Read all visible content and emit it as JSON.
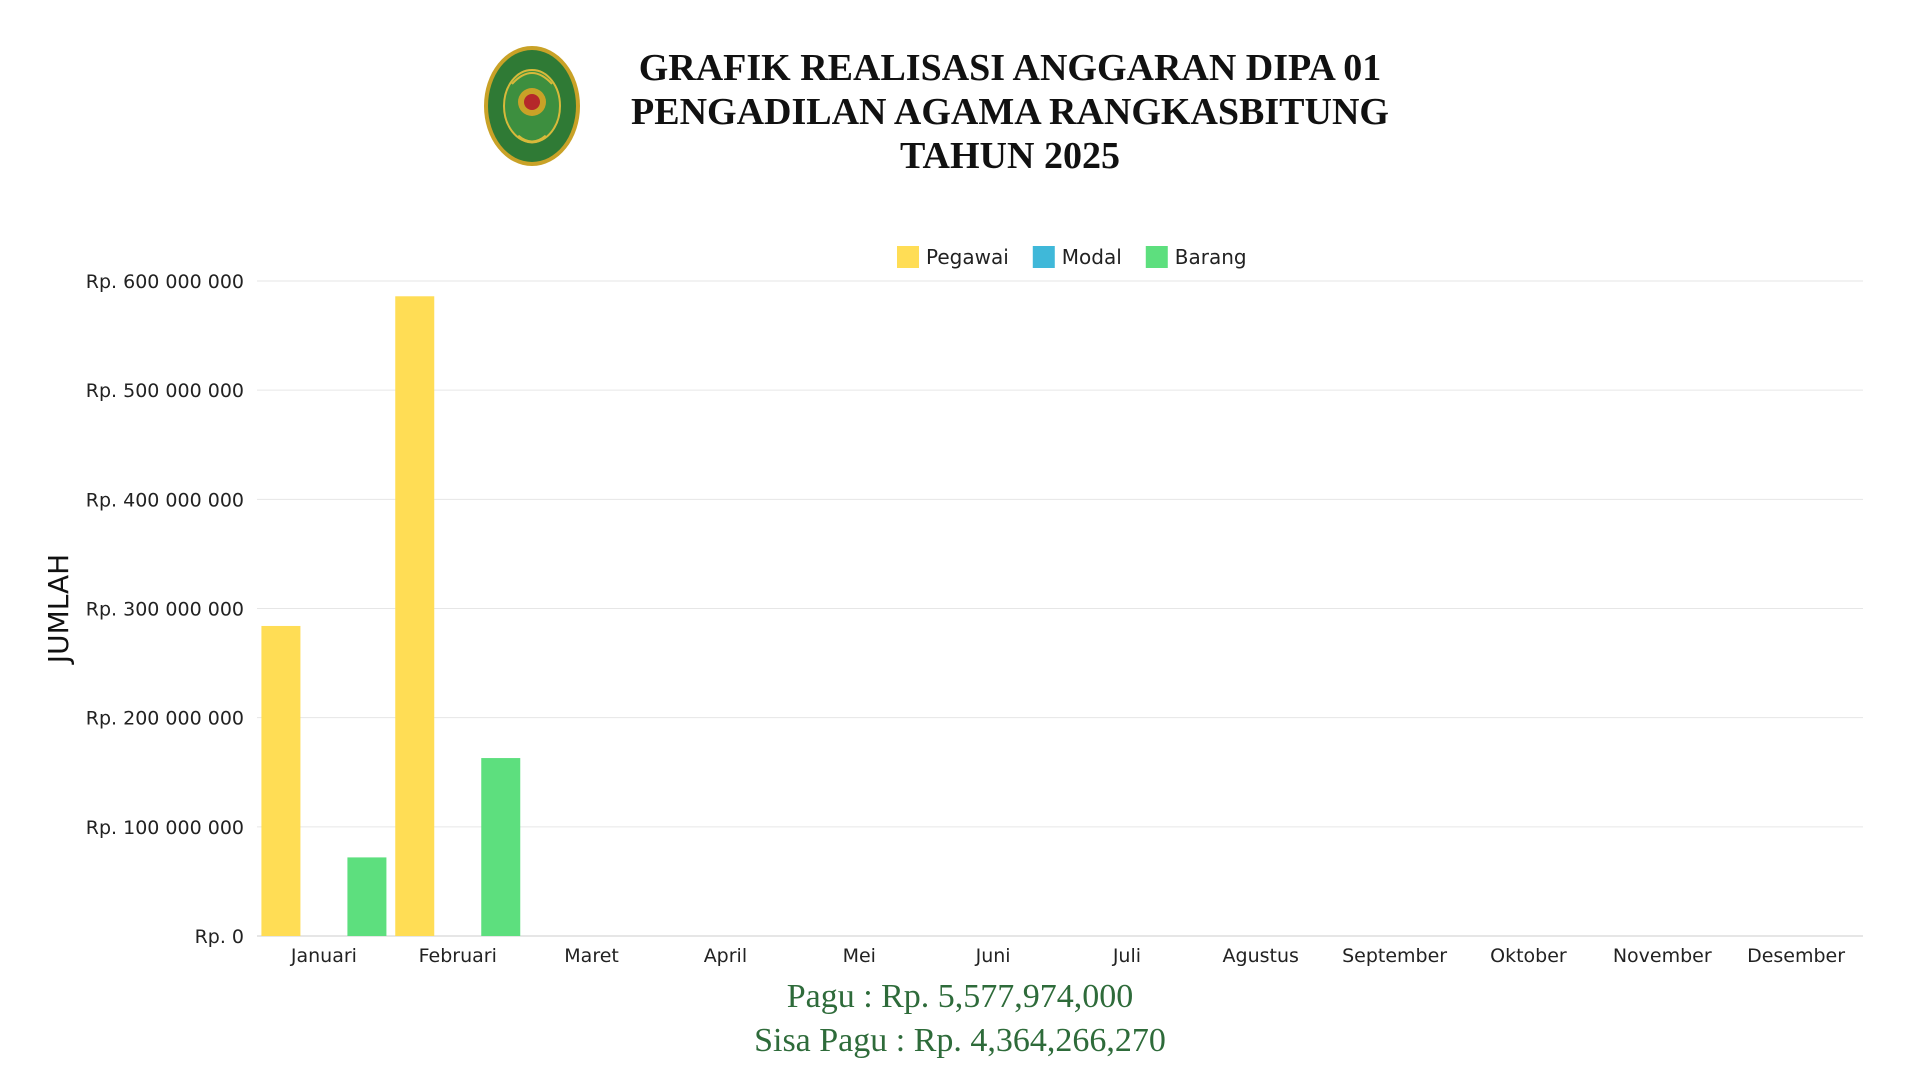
{
  "title": {
    "line1": "GRAFIK REALISASI ANGGARAN DIPA 01",
    "line2": "PENGADILAN AGAMA RANGKASBITUNG",
    "line3": "TAHUN 2025"
  },
  "footer": {
    "pagu": "Pagu : Rp. 5,577,974,000",
    "sisa_pagu": "Sisa Pagu : Rp. 4,364,266,270"
  },
  "logo": {
    "icon": "court-emblem-icon",
    "text": "PENGADILAN AGAMA RANGKASBITUNG"
  },
  "chart_data": {
    "type": "bar",
    "ylabel": "JUMLAH",
    "xlabel": "",
    "ylim": [
      0,
      600000000
    ],
    "yticks": [
      0,
      100000000,
      200000000,
      300000000,
      400000000,
      500000000,
      600000000
    ],
    "ytick_labels": [
      "Rp. 0",
      "Rp. 100 000 000",
      "Rp. 200 000 000",
      "Rp. 300 000 000",
      "Rp. 400 000 000",
      "Rp. 500 000 000",
      "Rp. 600 000 000"
    ],
    "categories": [
      "Januari",
      "Februari",
      "Maret",
      "April",
      "Mei",
      "Juni",
      "Juli",
      "Agustus",
      "September",
      "Oktober",
      "November",
      "Desember"
    ],
    "series": [
      {
        "name": "Pegawai",
        "color": "#ffdd55",
        "values": [
          284000000,
          586000000,
          0,
          0,
          0,
          0,
          0,
          0,
          0,
          0,
          0,
          0
        ]
      },
      {
        "name": "Modal",
        "color": "#3fb8d9",
        "values": [
          0,
          0,
          0,
          0,
          0,
          0,
          0,
          0,
          0,
          0,
          0,
          0
        ]
      },
      {
        "name": "Barang",
        "color": "#5ddf7e",
        "values": [
          72000000,
          163000000,
          0,
          0,
          0,
          0,
          0,
          0,
          0,
          0,
          0,
          0
        ]
      }
    ],
    "grid": true,
    "legend_position": "top-center"
  }
}
